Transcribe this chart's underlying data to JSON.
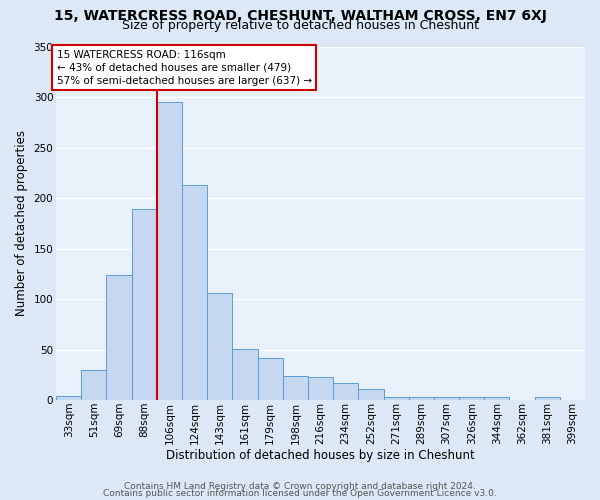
{
  "title": "15, WATERCRESS ROAD, CHESHUNT, WALTHAM CROSS, EN7 6XJ",
  "subtitle": "Size of property relative to detached houses in Cheshunt",
  "xlabel": "Distribution of detached houses by size in Cheshunt",
  "ylabel": "Number of detached properties",
  "bin_labels": [
    "33sqm",
    "51sqm",
    "69sqm",
    "88sqm",
    "106sqm",
    "124sqm",
    "143sqm",
    "161sqm",
    "179sqm",
    "198sqm",
    "216sqm",
    "234sqm",
    "252sqm",
    "271sqm",
    "289sqm",
    "307sqm",
    "326sqm",
    "344sqm",
    "362sqm",
    "381sqm",
    "399sqm"
  ],
  "bar_heights": [
    4,
    30,
    124,
    189,
    295,
    213,
    106,
    51,
    42,
    24,
    23,
    17,
    11,
    3,
    3,
    3,
    3,
    3,
    0,
    3,
    0
  ],
  "bar_color": "#c5d8f0",
  "bar_edge_color": "#5b9bd5",
  "ylim": [
    0,
    350
  ],
  "yticks": [
    0,
    50,
    100,
    150,
    200,
    250,
    300,
    350
  ],
  "vline_x_index": 4,
  "vline_color": "#cc0000",
  "annotation_title": "15 WATERCRESS ROAD: 116sqm",
  "annotation_line1": "← 43% of detached houses are smaller (479)",
  "annotation_line2": "57% of semi-detached houses are larger (637) →",
  "annotation_box_color": "#ffffff",
  "annotation_box_edge": "#cc0000",
  "footer1": "Contains HM Land Registry data © Crown copyright and database right 2024.",
  "footer2": "Contains public sector information licensed under the Open Government Licence v3.0.",
  "bg_color": "#dce8f5",
  "plot_bg_color": "#e8f1fa",
  "grid_color": "#ffffff",
  "title_fontsize": 10,
  "subtitle_fontsize": 9,
  "axis_label_fontsize": 8.5,
  "tick_fontsize": 7.5,
  "footer_fontsize": 6.5
}
